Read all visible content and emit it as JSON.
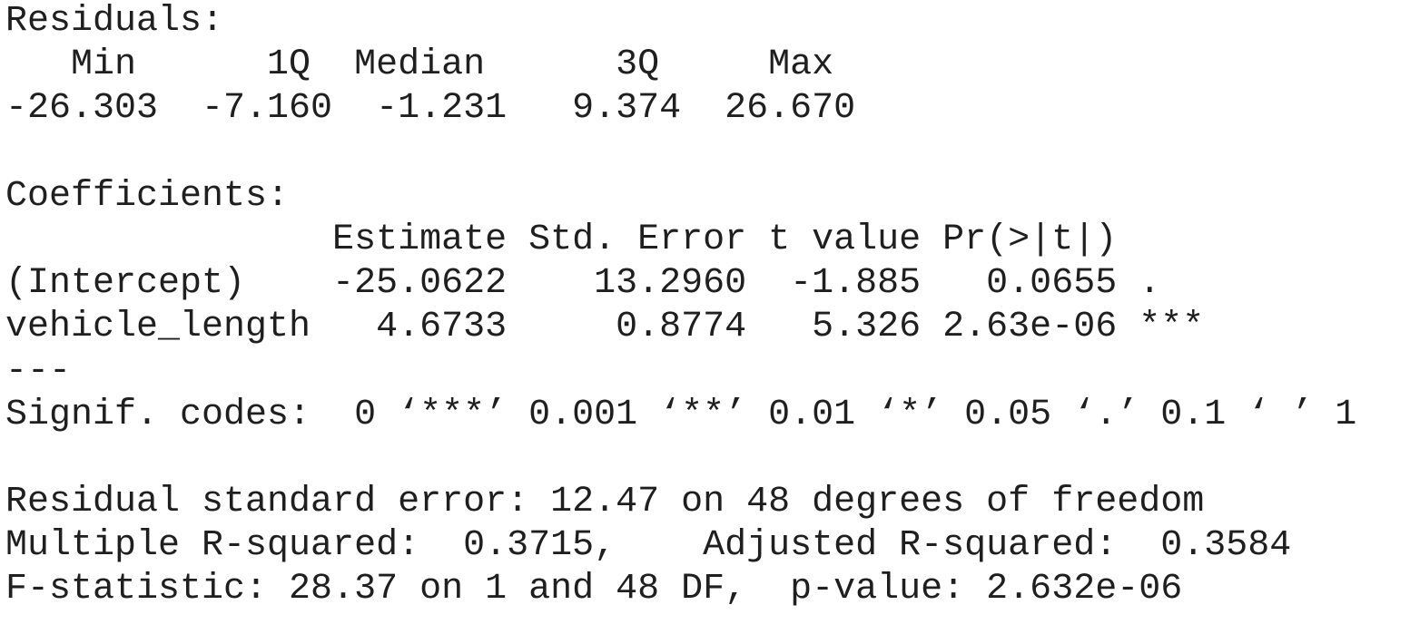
{
  "summary": {
    "residuals_heading": "Residuals:",
    "residuals_header_line": "   Min      1Q  Median      3Q     Max ",
    "residuals_values_line": "-26.303  -7.160  -1.231   9.374  26.670 ",
    "coefficients_heading": "Coefficients:",
    "coef_header_line": "               Estimate Std. Error t value Pr(>|t|)    ",
    "coef_rows": [
      "(Intercept)    -25.0622    13.2960  -1.885   0.0655 .  ",
      "vehicle_length   4.6733     0.8774   5.326 2.63e-06 ***"
    ],
    "separator_line": "---",
    "signif_codes_line": "Signif. codes:  0 ‘***’ 0.001 ‘**’ 0.01 ‘*’ 0.05 ‘.’ 0.1 ‘ ’ 1",
    "residual_se_line": "Residual standard error: 12.47 on 48 degrees of freedom",
    "r_squared_line": "Multiple R-squared:  0.3715,\tAdjusted R-squared:  0.3584 ",
    "f_statistic_line": "F-statistic: 28.37 on 1 and 48 DF,  p-value: 2.632e-06"
  }
}
